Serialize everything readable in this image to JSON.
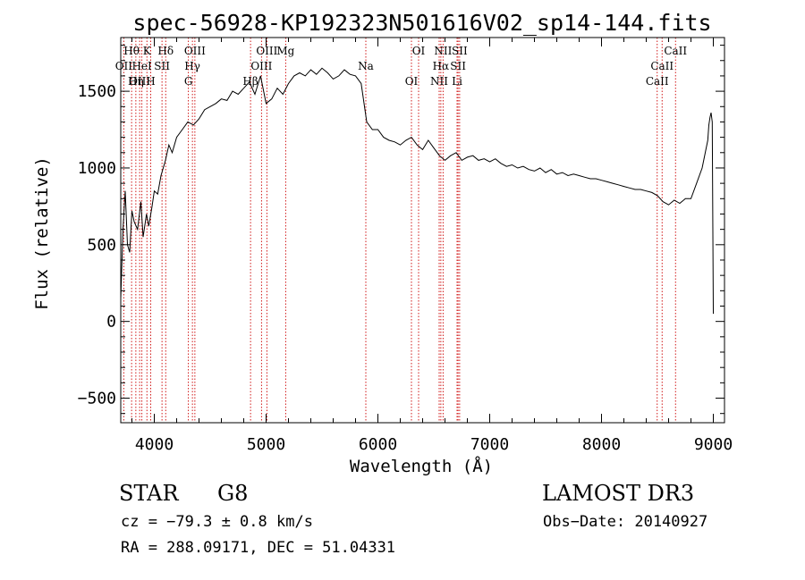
{
  "chart_data": {
    "type": "line",
    "title": "spec-56928-KP192323N501616V02_sp14-144.fits",
    "xlabel": "Wavelength (Å)",
    "ylabel": "Flux (relative)",
    "xlim": [
      3700,
      9100
    ],
    "ylim": [
      -660,
      1850
    ],
    "xticks": [
      4000,
      5000,
      6000,
      7000,
      8000,
      9000
    ],
    "yticks": [
      -500,
      0,
      500,
      1000,
      1500
    ],
    "line_color": "#000000",
    "marker_color": "#cc0000",
    "series": [
      {
        "x": [
          3700,
          3720,
          3740,
          3760,
          3780,
          3800,
          3820,
          3850,
          3880,
          3900,
          3930,
          3950,
          3980,
          4000,
          4030,
          4060,
          4100,
          4130,
          4160,
          4200,
          4250,
          4300,
          4350,
          4400,
          4450,
          4500,
          4550,
          4600,
          4650,
          4700,
          4750,
          4800,
          4850,
          4900,
          4950,
          5000,
          5050,
          5100,
          5150,
          5200,
          5250,
          5300,
          5350,
          5400,
          5450,
          5500,
          5550,
          5600,
          5650,
          5700,
          5750,
          5800,
          5850,
          5900,
          5950,
          6000,
          6050,
          6100,
          6150,
          6200,
          6250,
          6300,
          6350,
          6400,
          6450,
          6500,
          6550,
          6600,
          6650,
          6700,
          6750,
          6800,
          6850,
          6900,
          6950,
          7000,
          7050,
          7100,
          7150,
          7200,
          7250,
          7300,
          7350,
          7400,
          7450,
          7500,
          7550,
          7600,
          7650,
          7700,
          7750,
          7800,
          7850,
          7900,
          7950,
          8000,
          8050,
          8100,
          8150,
          8200,
          8250,
          8300,
          8350,
          8400,
          8450,
          8500,
          8550,
          8600,
          8650,
          8700,
          8750,
          8800,
          8850,
          8900,
          8950,
          8960,
          8970,
          8980,
          8990,
          9000
        ],
        "y": [
          150,
          600,
          850,
          500,
          450,
          720,
          650,
          600,
          780,
          550,
          700,
          620,
          750,
          850,
          830,
          950,
          1050,
          1150,
          1100,
          1200,
          1250,
          1300,
          1280,
          1320,
          1380,
          1400,
          1420,
          1450,
          1440,
          1500,
          1480,
          1520,
          1560,
          1480,
          1600,
          1420,
          1450,
          1520,
          1480,
          1550,
          1600,
          1620,
          1600,
          1640,
          1610,
          1650,
          1620,
          1580,
          1600,
          1640,
          1610,
          1600,
          1550,
          1300,
          1250,
          1250,
          1200,
          1180,
          1170,
          1150,
          1180,
          1200,
          1150,
          1120,
          1180,
          1130,
          1080,
          1050,
          1080,
          1100,
          1050,
          1070,
          1080,
          1050,
          1060,
          1040,
          1060,
          1030,
          1010,
          1020,
          1000,
          1010,
          990,
          980,
          1000,
          970,
          990,
          960,
          970,
          950,
          960,
          950,
          940,
          930,
          930,
          920,
          910,
          900,
          890,
          880,
          870,
          860,
          860,
          850,
          840,
          820,
          780,
          760,
          790,
          770,
          800,
          800,
          900,
          1000,
          1180,
          1280,
          1330,
          1360,
          1300,
          50
        ]
      }
    ],
    "lines": [
      {
        "name": "Hθ",
        "x": 3797
      },
      {
        "name": "OII",
        "x": 3727
      },
      {
        "name": "OIII",
        "x": 3869
      },
      {
        "name": "K",
        "x": 3934
      },
      {
        "name": "HeI",
        "x": 3889
      },
      {
        "name": "Hη",
        "x": 3835
      },
      {
        "name": "Hδ",
        "x": 4102
      },
      {
        "name": "SII",
        "x": 4069
      },
      {
        "name": "H",
        "x": 3968
      },
      {
        "name": "OIII",
        "x": 4363
      },
      {
        "name": "Hγ",
        "x": 4341
      },
      {
        "name": "G",
        "x": 4305
      },
      {
        "name": "OIII",
        "x": 5007
      },
      {
        "name": "OIII",
        "x": 4959
      },
      {
        "name": "Hβ",
        "x": 4861
      },
      {
        "name": "Mg",
        "x": 5175
      },
      {
        "name": "Na",
        "x": 5892
      },
      {
        "name": "OI",
        "x": 6300
      },
      {
        "name": "OI",
        "x": 6364
      },
      {
        "name": "Hα",
        "x": 6563
      },
      {
        "name": "NII",
        "x": 6548
      },
      {
        "name": "NII",
        "x": 6583
      },
      {
        "name": "SII",
        "x": 6717
      },
      {
        "name": "Li",
        "x": 6708
      },
      {
        "name": "SII",
        "x": 6731
      },
      {
        "name": "CaII",
        "x": 8542
      },
      {
        "name": "CaII",
        "x": 8498
      },
      {
        "name": "CaII",
        "x": 8662
      }
    ]
  },
  "info": {
    "obj_type": "STAR",
    "subclass": "G8",
    "survey": "LAMOST DR3",
    "cz": "cz = −79.3 ± 0.8 km/s",
    "obs_date": "Obs−Date: 20140927",
    "ra_dec": "RA = 288.09171, DEC =  51.04331"
  }
}
